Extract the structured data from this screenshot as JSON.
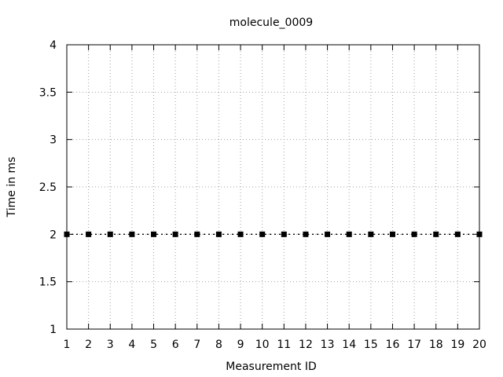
{
  "chart_data": {
    "type": "scatter",
    "title": "molecule_0009",
    "xlabel": "Measurement ID",
    "ylabel": "Time in ms",
    "xlim": [
      1,
      20
    ],
    "ylim": [
      1,
      4
    ],
    "xticks": [
      "1",
      "2",
      "3",
      "4",
      "5",
      "6",
      "7",
      "8",
      "9",
      "10",
      "11",
      "12",
      "13",
      "14",
      "15",
      "16",
      "17",
      "18",
      "19",
      "20"
    ],
    "yticks": [
      "1",
      "1.5",
      "2",
      "2.5",
      "3",
      "3.5",
      "4"
    ],
    "grid": true,
    "series": [
      {
        "x": [
          1,
          2,
          3,
          4,
          5,
          6,
          7,
          8,
          9,
          10,
          11,
          12,
          13,
          14,
          15,
          16,
          17,
          18,
          19,
          20
        ],
        "y": [
          2,
          2,
          2,
          2,
          2,
          2,
          2,
          2,
          2,
          2,
          2,
          2,
          2,
          2,
          2,
          2,
          2,
          2,
          2,
          2
        ],
        "color": "#000000",
        "marker": "square",
        "line_style": "dotted"
      }
    ]
  }
}
